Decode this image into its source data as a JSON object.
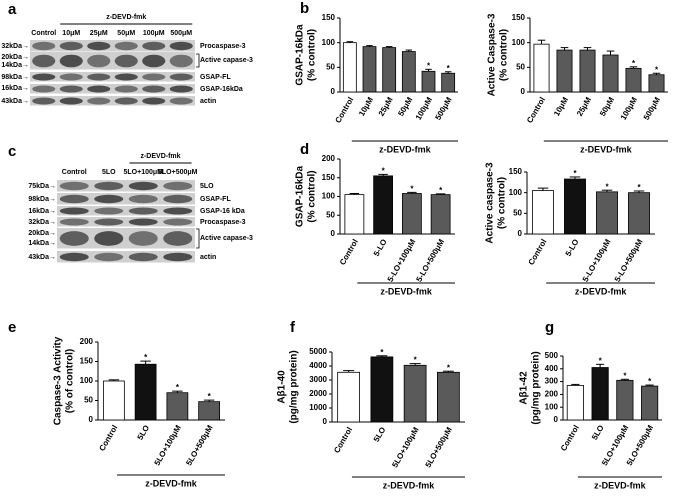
{
  "panel_labels": [
    "a",
    "b",
    "c",
    "d",
    "e",
    "f",
    "g"
  ],
  "blots": [
    {
      "header": "z-DEVD-fmk",
      "lanes": [
        "Control",
        "10μM",
        "25μM",
        "50μM",
        "100μM",
        "500μM"
      ],
      "markers": [
        "32kDa→",
        "20kDa→",
        "14kDa→",
        "98kDa→",
        "16kDa→",
        "43kDa→"
      ],
      "proteins": [
        "Procaspase-3",
        "Active capase-3",
        "GSAP-FL",
        "GSAP-16kDa",
        "actin"
      ]
    },
    {
      "header": "z-DEVD-fmk",
      "lanes": [
        "Control",
        "5LO",
        "5LO+100μM",
        "5LO+500μM"
      ],
      "markers": [
        "75kDa→",
        "98kDa→",
        "16kDa→",
        "32kDa→",
        "20kDa→",
        "14kDa→",
        "43kDa→"
      ],
      "proteins": [
        "5LO",
        "GSAP-FL",
        "GSAP-16 kDa",
        "Procaspase-3",
        "Active capase-3",
        "actin"
      ]
    }
  ],
  "chart_data": [
    {
      "type": "bar",
      "ylabel": [
        "GSAP-16kDa",
        "(% control)"
      ],
      "categories": [
        "Control",
        "10μM",
        "25μM",
        "50μM",
        "100μM",
        "500μM"
      ],
      "values": [
        100,
        92,
        90,
        82,
        42,
        38
      ],
      "errors": [
        2,
        2,
        2,
        3,
        4,
        3
      ],
      "colors": [
        "#ffffff",
        "#5a5a5a",
        "#5a5a5a",
        "#5a5a5a",
        "#5a5a5a",
        "#5a5a5a"
      ],
      "stars": [
        null,
        null,
        null,
        null,
        "*",
        "*"
      ],
      "group_label": "z-DEVD-fmk",
      "ylim": [
        0,
        150
      ],
      "yticks": [
        0,
        50,
        100,
        150
      ]
    },
    {
      "type": "bar",
      "ylabel": [
        "Active Caspase-3",
        "(% control)"
      ],
      "categories": [
        "Control",
        "10μM",
        "25μM",
        "50μM",
        "100μM",
        "500μM"
      ],
      "values": [
        97,
        85,
        85,
        75,
        48,
        35
      ],
      "errors": [
        8,
        5,
        5,
        8,
        3,
        3
      ],
      "colors": [
        "#ffffff",
        "#5a5a5a",
        "#5a5a5a",
        "#5a5a5a",
        "#5a5a5a",
        "#5a5a5a"
      ],
      "stars": [
        null,
        null,
        null,
        null,
        "*",
        "*"
      ],
      "group_label": "z-DEVD-fmk",
      "ylim": [
        0,
        150
      ],
      "yticks": [
        0,
        50,
        100,
        150
      ]
    },
    {
      "type": "bar",
      "ylabel": [
        "GSAP-16kDa",
        "(% control)"
      ],
      "categories": [
        "Control",
        "5-LO",
        "5-LO+100μM",
        "5-LO+500μM"
      ],
      "values": [
        105,
        155,
        108,
        105
      ],
      "errors": [
        3,
        4,
        3,
        2
      ],
      "colors": [
        "#ffffff",
        "#111111",
        "#5a5a5a",
        "#5a5a5a"
      ],
      "stars": [
        null,
        "*",
        "*",
        "*"
      ],
      "group_label": "z-DEVD-fmk",
      "ylim": [
        0,
        200
      ],
      "yticks": [
        0,
        50,
        100,
        150,
        200
      ]
    },
    {
      "type": "bar",
      "ylabel": [
        "Active caspase-3",
        "(% control)"
      ],
      "categories": [
        "Control",
        "5-LO",
        "5-LO+100μM",
        "5-LO+500μM"
      ],
      "values": [
        105,
        133,
        102,
        100
      ],
      "errors": [
        6,
        5,
        4,
        4
      ],
      "colors": [
        "#ffffff",
        "#111111",
        "#5a5a5a",
        "#5a5a5a"
      ],
      "stars": [
        null,
        "*",
        "*",
        "*"
      ],
      "group_label": "z-DEVD-fmk",
      "ylim": [
        0,
        150
      ],
      "yticks": [
        0,
        50,
        100,
        150
      ]
    },
    {
      "type": "bar",
      "ylabel": [
        "Caspase-3 Activity",
        "(% of control)"
      ],
      "categories": [
        "Control",
        "5LO",
        "5LO+100μM",
        "5LO+500μM"
      ],
      "values": [
        100,
        143,
        70,
        47
      ],
      "errors": [
        3,
        8,
        4,
        4
      ],
      "colors": [
        "#ffffff",
        "#111111",
        "#5a5a5a",
        "#5a5a5a"
      ],
      "stars": [
        null,
        "*",
        "*",
        "*"
      ],
      "group_label": "z-DEVD-fmk",
      "ylim": [
        0,
        200
      ],
      "yticks": [
        0,
        50,
        100,
        150,
        200
      ]
    },
    {
      "type": "bar",
      "ylabel": [
        "Aβ1-40",
        "(pg/mg protein)"
      ],
      "categories": [
        "Control",
        "5LO",
        "5LO+100μM",
        "5LO+500μM"
      ],
      "values": [
        3550,
        4650,
        4050,
        3550
      ],
      "errors": [
        120,
        80,
        120,
        80
      ],
      "colors": [
        "#ffffff",
        "#111111",
        "#5a5a5a",
        "#5a5a5a"
      ],
      "stars": [
        null,
        "*",
        "*",
        "*"
      ],
      "group_label": "z-DEVD-fmk",
      "ylim": [
        0,
        5000
      ],
      "yticks": [
        0,
        1000,
        2000,
        3000,
        4000,
        5000
      ]
    },
    {
      "type": "bar",
      "ylabel": [
        "Aβ1-42",
        "(pg/mg protein)"
      ],
      "categories": [
        "Control",
        "5LO",
        "5LO+100μM",
        "5LO+500μM"
      ],
      "values": [
        270,
        410,
        310,
        265
      ],
      "errors": [
        8,
        25,
        8,
        8
      ],
      "colors": [
        "#ffffff",
        "#111111",
        "#5a5a5a",
        "#5a5a5a"
      ],
      "stars": [
        null,
        "*",
        "*",
        "*"
      ],
      "group_label": "z-DEVD-fmk",
      "ylim": [
        0,
        500
      ],
      "yticks": [
        0,
        100,
        200,
        300,
        400,
        500
      ]
    }
  ]
}
